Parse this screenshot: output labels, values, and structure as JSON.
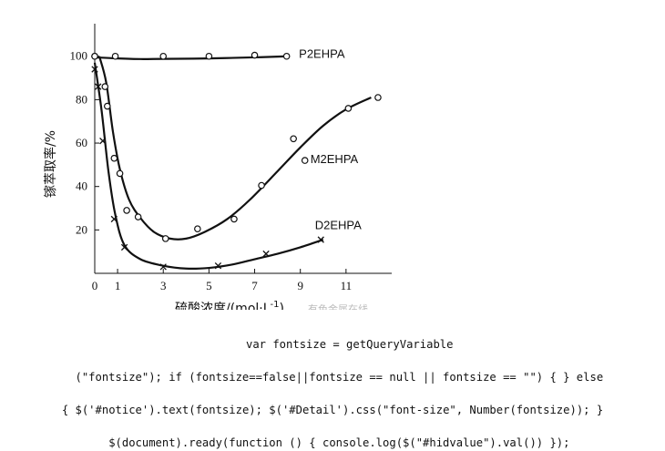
{
  "chart_data": {
    "type": "line",
    "ylabel": "镓萃取率/%",
    "xlabel": "硫酸浓度/(mol·L",
    "xlabel_sup": "-1",
    "xlabel_close": ")",
    "xticks": [
      0,
      1,
      3,
      5,
      7,
      9,
      11
    ],
    "yticks": [
      20,
      40,
      60,
      80,
      100
    ],
    "xlim": [
      0,
      13
    ],
    "ylim": [
      0,
      115
    ],
    "series": [
      {
        "name": "P2EHPA",
        "marker": "circle",
        "points": [
          [
            0,
            100
          ],
          [
            0.9,
            100
          ],
          [
            3,
            100
          ],
          [
            5,
            100
          ],
          [
            7,
            100.5
          ],
          [
            8.4,
            100
          ]
        ],
        "curve": [
          [
            0,
            99.5
          ],
          [
            1,
            99
          ],
          [
            2,
            98.7
          ],
          [
            3,
            98.8
          ],
          [
            5,
            99
          ],
          [
            7,
            99.5
          ],
          [
            8.5,
            100
          ]
        ]
      },
      {
        "name": "M2EHPA",
        "marker": "circle",
        "points": [
          [
            0,
            100
          ],
          [
            0.45,
            86
          ],
          [
            0.55,
            77
          ],
          [
            0.85,
            53
          ],
          [
            1.1,
            46
          ],
          [
            1.4,
            29
          ],
          [
            1.9,
            26
          ],
          [
            3.1,
            16
          ],
          [
            4.5,
            20.5
          ],
          [
            6.1,
            25
          ],
          [
            7.3,
            40.5
          ],
          [
            8.7,
            62
          ],
          [
            9.2,
            52
          ],
          [
            11.1,
            76
          ],
          [
            12.4,
            81
          ]
        ],
        "curve": [
          [
            0.2,
            100
          ],
          [
            0.5,
            88
          ],
          [
            0.8,
            65
          ],
          [
            1.1,
            48
          ],
          [
            1.5,
            34
          ],
          [
            2,
            25.5
          ],
          [
            2.6,
            19
          ],
          [
            3.3,
            16
          ],
          [
            4,
            16
          ],
          [
            4.8,
            19
          ],
          [
            5.8,
            25
          ],
          [
            6.8,
            34
          ],
          [
            8,
            47
          ],
          [
            9,
            58
          ],
          [
            10,
            68
          ],
          [
            11,
            75.5
          ],
          [
            12.1,
            81
          ]
        ]
      },
      {
        "name": "D2EHPA",
        "marker": "x",
        "points": [
          [
            0,
            94
          ],
          [
            0.15,
            86
          ],
          [
            0.35,
            61
          ],
          [
            0.85,
            25
          ],
          [
            1.3,
            12
          ],
          [
            3,
            3
          ],
          [
            5.4,
            3.5
          ],
          [
            7.5,
            9
          ],
          [
            9.9,
            15.5
          ]
        ],
        "curve": [
          [
            0,
            97
          ],
          [
            0.3,
            75
          ],
          [
            0.6,
            47
          ],
          [
            0.9,
            27
          ],
          [
            1.3,
            13
          ],
          [
            2,
            6.5
          ],
          [
            3,
            3.5
          ],
          [
            4,
            2.2
          ],
          [
            5,
            2.5
          ],
          [
            6,
            4
          ],
          [
            7,
            6.5
          ],
          [
            8,
            9
          ],
          [
            9,
            12
          ],
          [
            10,
            15.5
          ]
        ]
      }
    ]
  },
  "watermark": "有色金属在线",
  "code_lines": [
    "var fontsize = getQueryVariable",
    "(\"fontsize\"); if (fontsize==false||fontsize == null || fontsize == \"\") { } else",
    "{ $('#notice').text(fontsize); $('#Detail').css(\"font-size\", Number(fontsize)); }",
    "$(document).ready(function () { console.log($(\"#hidvalue\").val()) });"
  ]
}
